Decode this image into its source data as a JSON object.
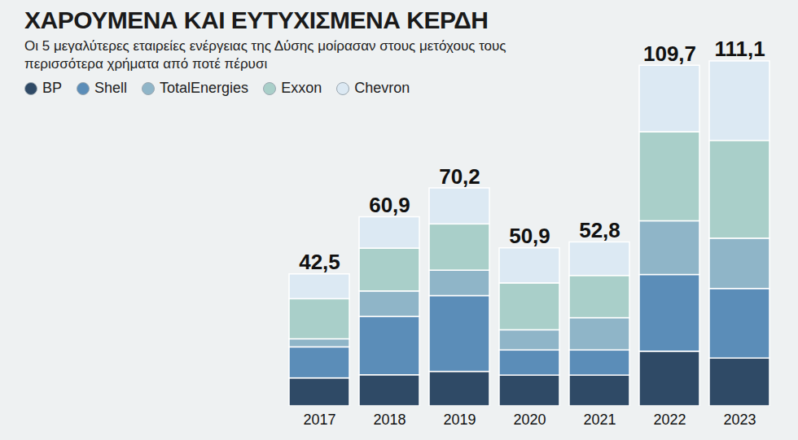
{
  "chart_data": {
    "type": "bar",
    "title": "ΧΑΡΟΥΜΕΝΑ ΚΑΙ ΕΥΤΥΧΙΣΜΕΝΑ ΚΕΡΔΗ",
    "subtitle": "Οι 5 μεγαλύτερες εταιρείες ενέργειας της Δύσης μοίρασαν στους μετόχους τους περισσότερα χρήματα από ποτέ πέρυσι",
    "categories": [
      "2017",
      "2018",
      "2019",
      "2020",
      "2021",
      "2022",
      "2023"
    ],
    "series": [
      {
        "name": "BP",
        "color": "#2f4a66",
        "values": [
          9.0,
          10.0,
          11.1,
          9.9,
          9.9,
          17.6,
          15.4
        ]
      },
      {
        "name": "Shell",
        "color": "#5b8db8",
        "values": [
          10.0,
          18.8,
          24.4,
          8.1,
          8.1,
          24.7,
          22.4
        ]
      },
      {
        "name": "TotalEnergies",
        "color": "#8fb5c8",
        "values": [
          2.6,
          8.2,
          8.2,
          6.5,
          10.4,
          17.3,
          16.2
        ]
      },
      {
        "name": "Exxon",
        "color": "#a9cfc9",
        "values": [
          12.9,
          13.8,
          14.9,
          15.1,
          13.6,
          28.7,
          31.5
        ]
      },
      {
        "name": "Chevron",
        "color": "#dce9f3",
        "values": [
          8.0,
          10.1,
          11.6,
          11.3,
          10.8,
          21.4,
          25.6
        ]
      }
    ],
    "totals": [
      42.5,
      60.9,
      70.2,
      50.9,
      52.8,
      109.7,
      111.1
    ],
    "total_labels": [
      "42,5",
      "60,9",
      "70,2",
      "50,9",
      "52,8",
      "109,7",
      "111,1"
    ],
    "stacked": true,
    "ylim": [
      0,
      115
    ],
    "tick_labels": "x",
    "grid": false,
    "legend": "top-left"
  }
}
